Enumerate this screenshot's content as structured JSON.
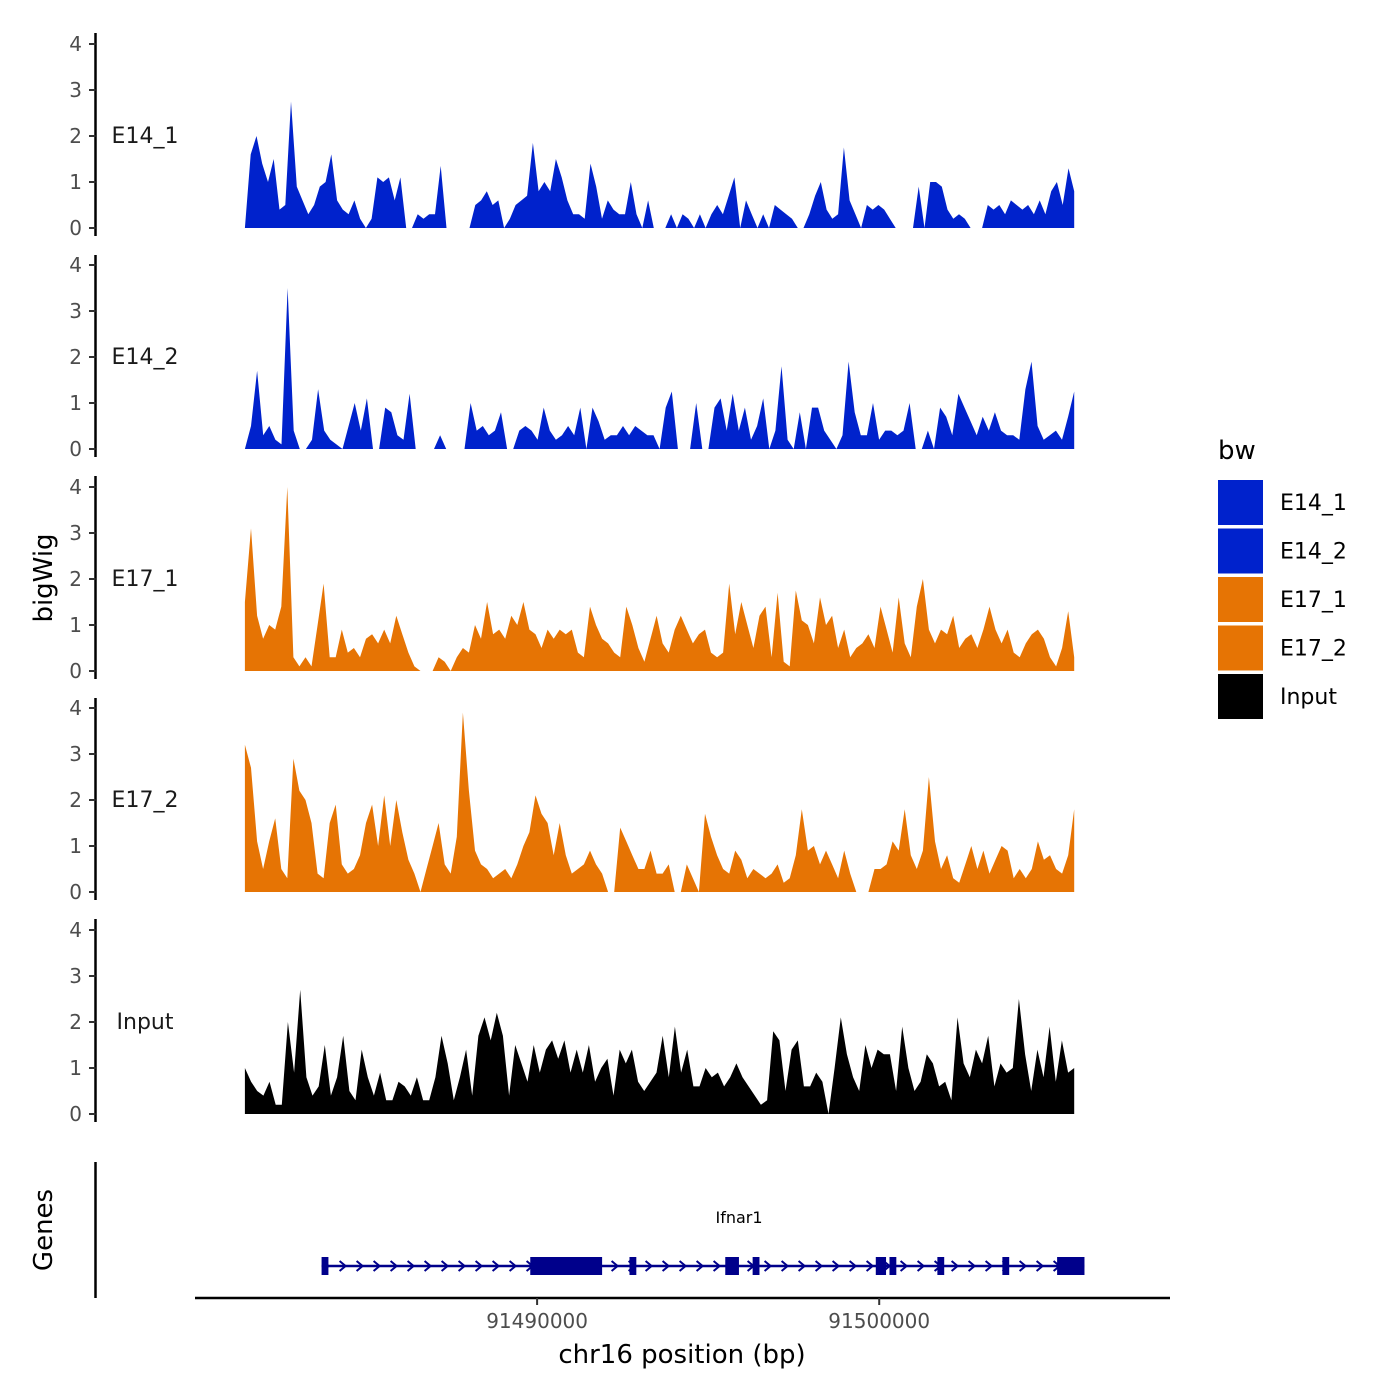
{
  "chart_data": {
    "type": "area",
    "xlabel": "chr16 position (bp)",
    "ylabel": "bigWig",
    "genes_ylabel": "Genes",
    "xlim": [
      91480000,
      91508500
    ],
    "x_ticks": [
      91490000,
      91500000
    ],
    "x_tick_labels": [
      "91490000",
      "91500000"
    ],
    "ylim": [
      0,
      4
    ],
    "y_ticks": [
      0,
      1,
      2,
      3,
      4
    ],
    "y_tick_labels": [
      "0",
      "1",
      "2",
      "3",
      "4"
    ],
    "legend": {
      "title": "bw",
      "position": "right",
      "entries": [
        {
          "name": "E14_1",
          "color": "#0022cc"
        },
        {
          "name": "E14_2",
          "color": "#0022cc"
        },
        {
          "name": "E17_1",
          "color": "#e67404"
        },
        {
          "name": "E17_2",
          "color": "#e67404"
        },
        {
          "name": "Input",
          "color": "#000000"
        }
      ]
    },
    "series": [
      {
        "name": "E14_1",
        "color": "#0022cc",
        "start": 91481460,
        "end": 91505700,
        "values": [
          0,
          1.6,
          2.0,
          1.4,
          1.0,
          1.5,
          0.4,
          0.5,
          2.75,
          0.9,
          0.6,
          0.3,
          0.5,
          0.9,
          1.0,
          1.6,
          0.6,
          0.4,
          0.3,
          0.6,
          0.2,
          0,
          0.2,
          1.1,
          1.0,
          1.1,
          0.6,
          1.1,
          0,
          0,
          0.3,
          0.2,
          0.3,
          0.3,
          1.35,
          0,
          0,
          0,
          0,
          0,
          0.5,
          0.6,
          0.8,
          0.5,
          0.6,
          0,
          0.2,
          0.5,
          0.6,
          0.7,
          1.85,
          0.8,
          1.0,
          0.8,
          1.5,
          1.1,
          0.6,
          0.3,
          0.3,
          0.2,
          1.4,
          0.9,
          0.2,
          0.6,
          0.4,
          0.3,
          0.3,
          1.0,
          0.3,
          0,
          0.6,
          0,
          0,
          0,
          0.3,
          0,
          0.3,
          0.2,
          0,
          0.3,
          0,
          0.3,
          0.5,
          0.3,
          0.7,
          1.1,
          0,
          0.6,
          0.3,
          0,
          0.3,
          0,
          0.5,
          0.4,
          0.3,
          0.2,
          0,
          0,
          0.3,
          0.7,
          1.0,
          0.4,
          0.2,
          0.3,
          1.75,
          0.6,
          0.3,
          0,
          0.5,
          0.4,
          0.5,
          0.4,
          0.2,
          0,
          0,
          0,
          0,
          0.9,
          0,
          1.0,
          1.0,
          0.9,
          0.4,
          0.2,
          0.3,
          0.2,
          0,
          0,
          0,
          0.5,
          0.4,
          0.5,
          0.3,
          0.6,
          0.5,
          0.4,
          0.5,
          0.3,
          0.6,
          0.3,
          0.8,
          1.0,
          0.5,
          1.3,
          0.8
        ]
      },
      {
        "name": "E14_2",
        "color": "#0022cc",
        "start": 91481460,
        "end": 91505700,
        "values": [
          0,
          0.5,
          1.7,
          0.3,
          0.5,
          0.2,
          0.1,
          3.5,
          0.4,
          0,
          0,
          0.2,
          1.3,
          0.4,
          0.2,
          0.1,
          0,
          0.5,
          1.0,
          0.4,
          1.1,
          0,
          0,
          0.9,
          0.8,
          0.3,
          0.2,
          1.2,
          0,
          0,
          0,
          0,
          0.3,
          0,
          0,
          0,
          0,
          1.0,
          0.4,
          0.5,
          0.3,
          0.4,
          0.8,
          0,
          0,
          0.4,
          0.5,
          0.4,
          0.2,
          0.9,
          0.4,
          0.2,
          0.3,
          0.5,
          0.3,
          0.9,
          0,
          0.9,
          0.6,
          0.2,
          0.3,
          0.3,
          0.5,
          0.3,
          0.5,
          0.4,
          0.3,
          0.3,
          0,
          0.9,
          1.25,
          0,
          0,
          0,
          1.0,
          0,
          0,
          0.9,
          1.1,
          0.4,
          1.2,
          0.4,
          0.9,
          0.2,
          0.5,
          1.1,
          0,
          0.4,
          1.8,
          0.2,
          0,
          0.8,
          0,
          0.9,
          0.9,
          0.4,
          0.2,
          0,
          0.3,
          1.9,
          0.8,
          0.3,
          0.3,
          1.0,
          0.2,
          0.4,
          0.4,
          0.3,
          0.4,
          1.0,
          0,
          0,
          0.4,
          0,
          0.9,
          0.7,
          0.3,
          1.2,
          0.9,
          0.6,
          0.3,
          0.7,
          0.4,
          0.8,
          0.4,
          0.3,
          0.3,
          0.2,
          1.3,
          1.9,
          0.5,
          0.2,
          0.3,
          0.4,
          0.2,
          0.7,
          1.25
        ]
      },
      {
        "name": "E17_1",
        "color": "#e67404",
        "start": 91481460,
        "end": 91505700,
        "values": [
          1.5,
          3.1,
          1.2,
          0.7,
          1.0,
          0.9,
          1.4,
          4.0,
          0.3,
          0.1,
          0.3,
          0.1,
          1.0,
          1.9,
          0.3,
          0.3,
          0.9,
          0.4,
          0.5,
          0.3,
          0.7,
          0.8,
          0.6,
          0.9,
          0.6,
          1.2,
          0.8,
          0.4,
          0.1,
          0,
          0,
          0,
          0.3,
          0.2,
          0,
          0.3,
          0.5,
          0.4,
          1.0,
          0.7,
          1.5,
          0.8,
          0.9,
          0.7,
          1.2,
          1.0,
          1.5,
          0.9,
          0.8,
          0.5,
          0.9,
          0.7,
          0.9,
          0.8,
          0.9,
          0.4,
          0.3,
          1.4,
          1.0,
          0.7,
          0.6,
          0.4,
          0.3,
          1.4,
          1.0,
          0.5,
          0.2,
          0.7,
          1.2,
          0.6,
          0.4,
          0.9,
          1.2,
          0.9,
          0.6,
          0.8,
          0.9,
          0.4,
          0.3,
          0.4,
          1.9,
          0.8,
          1.5,
          1.0,
          0.5,
          1.2,
          1.4,
          0.3,
          1.7,
          0.2,
          0.1,
          1.75,
          1.1,
          1.0,
          0.6,
          1.6,
          1.0,
          1.2,
          0.5,
          0.9,
          0.3,
          0.5,
          0.6,
          0.8,
          0.5,
          1.4,
          0.9,
          0.4,
          1.6,
          0.6,
          0.3,
          1.4,
          2.0,
          0.9,
          0.6,
          0.9,
          0.8,
          1.2,
          0.5,
          0.7,
          0.8,
          0.5,
          0.9,
          1.4,
          0.9,
          0.6,
          0.9,
          0.4,
          0.3,
          0.6,
          0.8,
          0.9,
          0.7,
          0.3,
          0.1,
          0.5,
          1.3,
          0.3
        ]
      },
      {
        "name": "E17_2",
        "color": "#e67404",
        "start": 91481460,
        "end": 91505700,
        "values": [
          3.2,
          2.7,
          1.1,
          0.5,
          1.1,
          1.6,
          0.5,
          0.3,
          2.9,
          2.2,
          2.0,
          1.5,
          0.4,
          0.3,
          1.5,
          1.9,
          0.6,
          0.4,
          0.5,
          0.8,
          1.5,
          1.9,
          1.0,
          2.1,
          1.0,
          2.0,
          1.3,
          0.7,
          0.4,
          0,
          0.5,
          1.0,
          1.5,
          0.6,
          0.4,
          1.2,
          3.9,
          2.2,
          0.9,
          0.6,
          0.5,
          0.3,
          0.4,
          0.5,
          0.3,
          0.6,
          1.0,
          1.3,
          2.1,
          1.7,
          1.5,
          0.8,
          1.5,
          0.8,
          0.4,
          0.5,
          0.6,
          0.9,
          0.6,
          0.4,
          0,
          0,
          1.4,
          1.1,
          0.8,
          0.5,
          0.5,
          0.9,
          0.4,
          0.4,
          0.6,
          0,
          0,
          0.6,
          0.3,
          0,
          1.7,
          1.2,
          0.8,
          0.5,
          0.4,
          0.9,
          0.7,
          0.3,
          0.5,
          0.4,
          0.3,
          0.4,
          0.6,
          0.2,
          0.3,
          0.8,
          1.8,
          0.9,
          1.0,
          0.6,
          0.9,
          0.6,
          0.3,
          0.9,
          0.4,
          0,
          0,
          0,
          0.5,
          0.5,
          0.6,
          1.1,
          0.9,
          1.8,
          0.8,
          0.5,
          0.9,
          2.5,
          1.1,
          0.5,
          0.8,
          0.3,
          0.2,
          0.6,
          1.0,
          0.5,
          0.9,
          0.4,
          0.7,
          1.0,
          0.9,
          0.3,
          0.5,
          0.3,
          0.5,
          1.1,
          0.7,
          0.8,
          0.5,
          0.4,
          0.8,
          1.8
        ]
      },
      {
        "name": "Input",
        "color": "#000000",
        "start": 91481460,
        "end": 91505700,
        "values": [
          1.0,
          0.7,
          0.5,
          0.4,
          0.7,
          0.2,
          0.2,
          2.0,
          0.9,
          2.7,
          0.8,
          0.4,
          0.6,
          1.5,
          0.4,
          0.8,
          1.7,
          0.5,
          0.3,
          1.4,
          0.8,
          0.4,
          0.9,
          0.3,
          0.3,
          0.7,
          0.6,
          0.4,
          0.8,
          0.3,
          0.3,
          0.8,
          1.7,
          1.1,
          0.3,
          0.8,
          1.4,
          0.4,
          1.7,
          2.1,
          1.6,
          2.2,
          1.7,
          0.4,
          1.5,
          1.1,
          0.7,
          1.5,
          0.9,
          1.4,
          1.6,
          1.2,
          1.6,
          0.9,
          1.4,
          0.9,
          1.5,
          0.7,
          1.0,
          1.2,
          0.4,
          1.4,
          1.1,
          1.4,
          0.7,
          0.5,
          0.7,
          0.9,
          1.7,
          0.8,
          1.9,
          0.9,
          1.4,
          0.6,
          0.6,
          1.0,
          0.8,
          0.9,
          0.6,
          0.8,
          1.1,
          0.8,
          0.6,
          0.4,
          0.2,
          0.3,
          1.8,
          1.6,
          0.5,
          1.4,
          1.6,
          0.6,
          0.6,
          0.9,
          0.7,
          0,
          1.0,
          2.1,
          1.3,
          0.8,
          0.5,
          1.5,
          1.0,
          1.4,
          1.3,
          1.3,
          0.5,
          1.9,
          1.0,
          0.5,
          0.7,
          1.3,
          1.1,
          0.6,
          0.7,
          0.3,
          2.1,
          1.1,
          0.8,
          1.4,
          1.1,
          1.7,
          0.6,
          1.1,
          0.9,
          1.0,
          2.5,
          1.3,
          0.5,
          1.4,
          0.8,
          1.9,
          0.7,
          1.6,
          0.9,
          1.0
        ]
      }
    ],
    "genes": [
      {
        "name": "Ifnar1",
        "strand": "+",
        "start": 91483700,
        "end": 91506000,
        "exons": [
          [
            91483700,
            91483900
          ],
          [
            91489800,
            91491900
          ],
          [
            91492700,
            91492900
          ],
          [
            91495500,
            91495900
          ],
          [
            91496300,
            91496500
          ],
          [
            91499900,
            91500200
          ],
          [
            91500300,
            91500500
          ],
          [
            91501700,
            91501900
          ],
          [
            91503600,
            91503800
          ],
          [
            91505200,
            91506000
          ]
        ]
      }
    ],
    "gene_color": "#00008b"
  }
}
